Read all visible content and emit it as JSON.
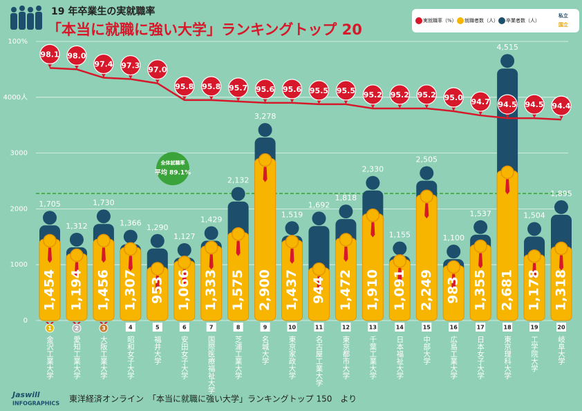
{
  "chart_data": {
    "type": "bar",
    "title": "19 年卒業生の実就職率",
    "subtitle": "「本当に就職に強い大学」ランキングトップ 20",
    "categories": [
      "金沢工業大学",
      "愛知工業大学",
      "大阪工業大学",
      "昭和女子大学",
      "福井大学",
      "安田女子大学",
      "国際医療福祉大学",
      "芝浦工業大学",
      "名城大学",
      "東京家政大学",
      "名古屋工業大学",
      "東京都市大学",
      "千葉工業大学",
      "日本福祉大学",
      "中部大学",
      "広島工業大学",
      "日本女子大学",
      "東京理科大学",
      "工学院大学",
      "岐阜大学"
    ],
    "ranks": [
      1,
      2,
      3,
      4,
      5,
      6,
      7,
      8,
      9,
      10,
      11,
      12,
      13,
      14,
      15,
      16,
      17,
      18,
      19,
      20
    ],
    "series": [
      {
        "name": "実就職率（%）",
        "color": "#d7182a",
        "axis": "y2",
        "values": [
          98.1,
          98.0,
          97.4,
          97.3,
          97.0,
          95.8,
          95.8,
          95.7,
          95.6,
          95.6,
          95.5,
          95.5,
          95.2,
          95.2,
          95.2,
          95.0,
          94.7,
          94.5,
          94.5,
          94.4
        ],
        "value_labels": [
          "98.1",
          "98.0",
          "97.4",
          "97.3",
          "97.0",
          "95.8",
          "95.8",
          "95.7",
          "95.6",
          "95.6",
          "95.5",
          "95.5",
          "95.2",
          "95.2",
          "95.2",
          "95.0",
          "94.7",
          "94.5",
          "94.5",
          "94.4"
        ]
      },
      {
        "name": "卒業者数（人）",
        "color": "#1d4e6b",
        "values": [
          1705,
          1312,
          1730,
          1366,
          1290,
          1127,
          1429,
          2132,
          3278,
          1519,
          1692,
          1818,
          2330,
          1155,
          2505,
          1100,
          1537,
          4515,
          1504,
          1895
        ],
        "value_labels": [
          "1,705",
          "1,312",
          "1,730",
          "1,366",
          "1,290",
          "1,127",
          "1,429",
          "2,132",
          "3,278",
          "1,519",
          "1,692",
          "1,818",
          "2,330",
          "1,155",
          "2,505",
          "1,100",
          "1,537",
          "4,515",
          "1,504",
          "1,895"
        ]
      },
      {
        "name": "就職者数（人）",
        "color": "#f7b500",
        "values": [
          1454,
          1194,
          1456,
          1307,
          953,
          1066,
          1333,
          1575,
          2900,
          1437,
          944,
          1472,
          1910,
          1091,
          2249,
          983,
          1355,
          2681,
          1178,
          1318
        ],
        "value_labels": [
          "1,454",
          "1,194",
          "1,456",
          "1,307",
          "953",
          "1,066",
          "1,333",
          "1,575",
          "2,900",
          "1,437",
          "944",
          "1,472",
          "1,910",
          "1,091",
          "2,249",
          "983",
          "1,355",
          "2,681",
          "1,178",
          "1,318"
        ]
      }
    ],
    "ylim": [
      0,
      5000
    ],
    "yticks": [
      0,
      1000,
      2000,
      3000,
      {
        "value": 4000,
        "label": "4000人"
      }
    ],
    "y2lim": [
      80,
      100
    ],
    "y2ticks": [
      {
        "value": 100,
        "label": "100%"
      }
    ],
    "grid": true,
    "average": {
      "title": "全体就職率",
      "label": "平均 89.1%",
      "value": 89.1,
      "color": "#3aa33a"
    },
    "legend_extra": [
      {
        "name": "私立",
        "color": "#1d4e6b"
      },
      {
        "name": "国立",
        "color": "#e8a000"
      }
    ],
    "source": "東洋経済オンライン　「本当に就職に強い大学」ランキングトップ 150　より",
    "logo": {
      "name": "Jaswill",
      "tagline": "INFOGRAPHICS"
    }
  }
}
